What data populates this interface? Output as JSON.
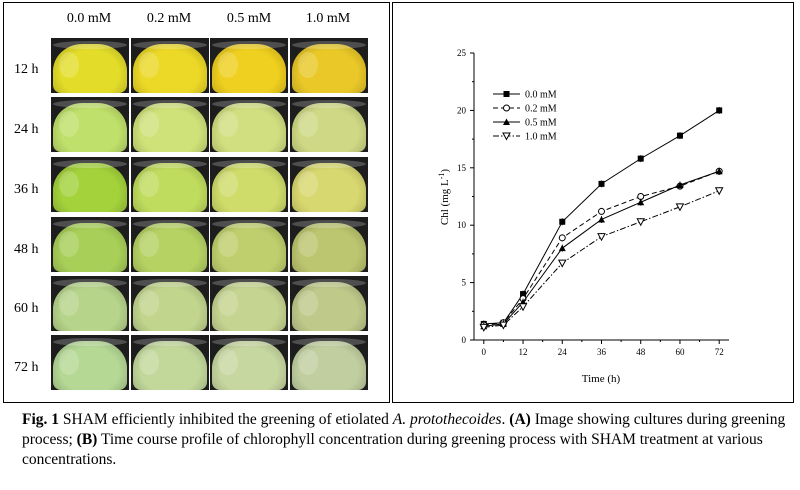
{
  "panelA": {
    "columns": [
      "0.0 mM",
      "0.2 mM",
      "0.5 mM",
      "1.0 mM"
    ],
    "rows": [
      "12 h",
      "24 h",
      "36 h",
      "48 h",
      "60 h",
      "72 h"
    ],
    "culture_colors": [
      [
        "#e3dd2a",
        "#ecd827",
        "#efcf1f",
        "#e9c828"
      ],
      [
        "#bfe06a",
        "#cfe279",
        "#d2df80",
        "#cfd985"
      ],
      [
        "#a3d23b",
        "#c0dc5e",
        "#cfdc6a",
        "#d8d870"
      ],
      [
        "#a8cf58",
        "#b5d263",
        "#c0cf6d",
        "#bcc56f"
      ],
      [
        "#b6d48a",
        "#c1d58d",
        "#c6d491",
        "#bfc98a"
      ],
      [
        "#b5d895",
        "#c2d89b",
        "#c7d7a0",
        "#c1cfa0"
      ]
    ]
  },
  "chart_data": {
    "type": "line",
    "xlabel": "Time (h)",
    "ylabel": "Chl (mg L",
    "ylabel_sup": "-1",
    "ylabel_close": ")",
    "xlim": [
      -3,
      75
    ],
    "ylim": [
      0,
      25
    ],
    "xticks": [
      "0",
      "12",
      "24",
      "36",
      "48",
      "60",
      "72"
    ],
    "yticks": [
      "0",
      "5",
      "10",
      "15",
      "20",
      "25"
    ],
    "x": [
      0,
      6,
      12,
      24,
      36,
      48,
      60,
      72
    ],
    "series": [
      {
        "name": "0.0 mM",
        "marker": "square",
        "dash": "",
        "values": [
          1.4,
          1.5,
          4.0,
          10.3,
          13.6,
          15.8,
          17.8,
          20.0
        ]
      },
      {
        "name": "0.2 mM",
        "marker": "circle",
        "dash": "5,3",
        "values": [
          1.3,
          1.5,
          3.6,
          8.9,
          11.2,
          12.5,
          13.4,
          14.7
        ]
      },
      {
        "name": "0.5 mM",
        "marker": "triangle",
        "dash": "",
        "values": [
          1.2,
          1.4,
          3.3,
          8.0,
          10.5,
          12.0,
          13.5,
          14.7
        ]
      },
      {
        "name": "1.0 mM",
        "marker": "triangle-down",
        "dash": "6,2,1.5,2",
        "values": [
          1.1,
          1.3,
          2.9,
          6.7,
          9.0,
          10.3,
          11.6,
          13.0
        ]
      }
    ],
    "legend_position": "top-left"
  },
  "caption": {
    "fig_label": "Fig. 1",
    "text1": " SHAM efficiently inhibited the greening of etiolated ",
    "species": "A. protothecoides",
    "text2": ". ",
    "label_a": "(A)",
    "text3": " Image showing cultures during greening process; ",
    "label_b": "(B)",
    "text4": " Time course profile of chlorophyll concentration during greening process with SHAM treatment at various concentrations",
    "text5": "."
  }
}
